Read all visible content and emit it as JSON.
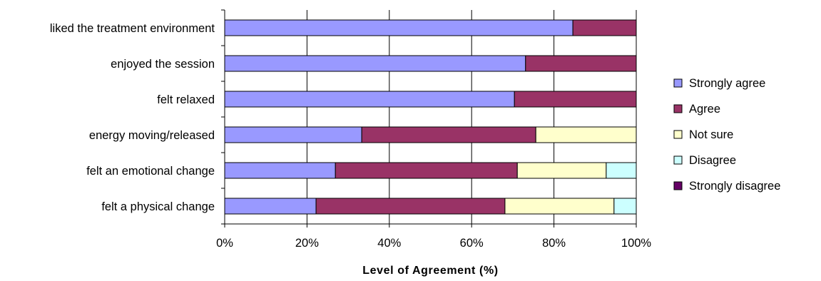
{
  "chart_data": {
    "type": "bar",
    "orientation": "horizontal",
    "stacked": "percent",
    "categories": [
      "liked the treatment environment",
      "enjoyed the session",
      "felt relaxed",
      "energy moving/released",
      "felt an emotional change",
      "felt a physical change"
    ],
    "series": [
      {
        "name": "Strongly agree",
        "color": "#9999FF",
        "values": [
          84.6,
          73.1,
          70.4,
          33.3,
          26.9,
          22.2
        ]
      },
      {
        "name": "Agree",
        "color": "#993366",
        "values": [
          15.4,
          26.9,
          29.6,
          42.3,
          44.2,
          45.9
        ]
      },
      {
        "name": "Not sure",
        "color": "#FFFFCC",
        "values": [
          0,
          0,
          0,
          24.4,
          21.6,
          26.5
        ]
      },
      {
        "name": "Disagree",
        "color": "#CCFFFF",
        "values": [
          0,
          0,
          0,
          0,
          7.3,
          5.4
        ]
      },
      {
        "name": "Strongly disagree",
        "color": "#660066",
        "values": [
          0,
          0,
          0,
          0,
          0,
          0
        ]
      }
    ],
    "xlabel": "Level of Agreement (%)",
    "ylabel": "",
    "xlim": [
      0,
      100
    ],
    "xticks": [
      "0%",
      "20%",
      "40%",
      "60%",
      "80%",
      "100%"
    ],
    "grid": true,
    "legend": "right"
  }
}
